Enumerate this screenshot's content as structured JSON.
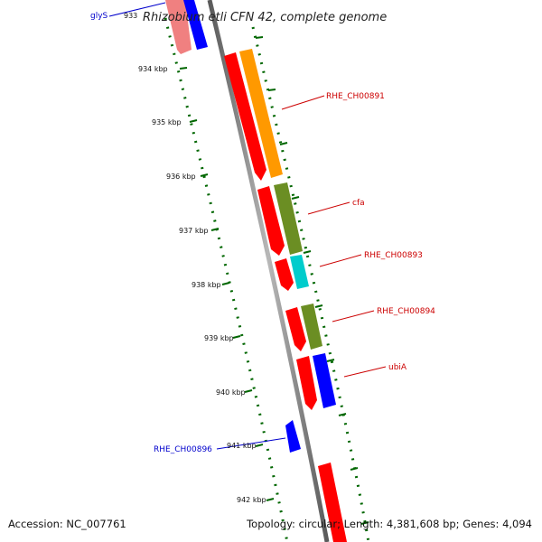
{
  "title": "Rhizobium etli CFN 42, complete genome",
  "footer": {
    "accession": "Accession: NC_007761",
    "topology": "Topology: circular; Length: 4,381,608 bp; Genes: 4,094"
  },
  "ticks": [
    "933",
    "934 kbp",
    "935 kbp",
    "936 kbp",
    "937 kbp",
    "938 kbp",
    "939 kbp",
    "940 kbp",
    "941 kbp",
    "942 kbp"
  ],
  "gene_labels": {
    "glys": "glyS",
    "RHE_CH00891": "RHE_CH00891",
    "cfa": "cfa",
    "RHE_CH00893": "RHE_CH00893",
    "RHE_CH00894": "RHE_CH00894",
    "ubiA": "ubiA",
    "RHE_CH00896": "RHE_CH00896"
  },
  "colors": {
    "forward_label": "#cc0000",
    "reverse_label": "#0000cc",
    "cds": "#ff0000",
    "orange": "#ff9900",
    "olive": "#6b8e23",
    "cyan": "#00cccc",
    "blue": "#0000ff",
    "tick": "#006600",
    "backbone": "#888888"
  }
}
